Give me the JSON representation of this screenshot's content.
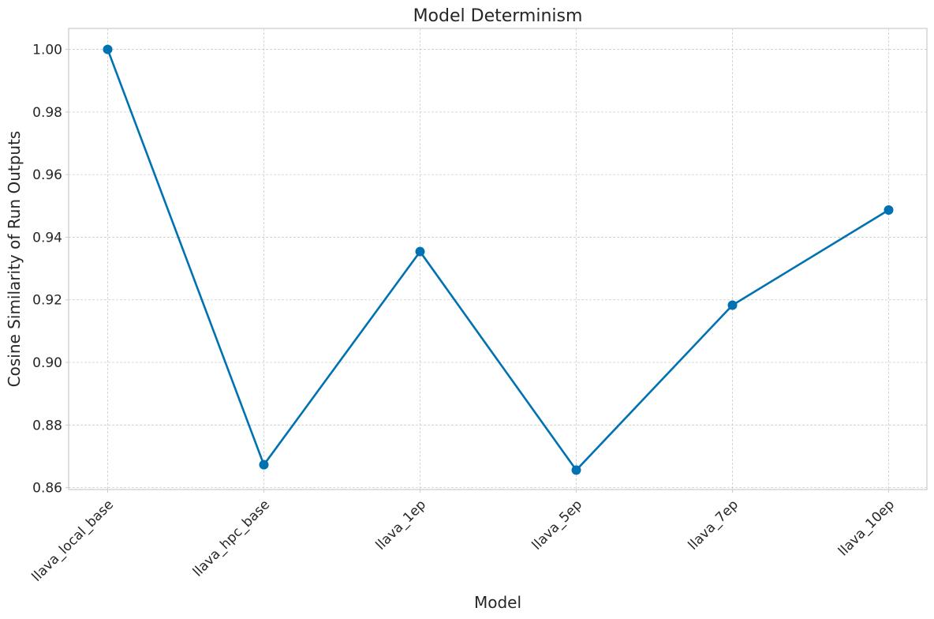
{
  "chart_data": {
    "type": "line",
    "title": "Model Determinism",
    "xlabel": "Model",
    "ylabel": "Cosine Similarity of Run Outputs",
    "categories": [
      "llava_local_base",
      "llava_hpc_base",
      "llava_1ep",
      "llava_5ep",
      "llava_7ep",
      "llava_10ep"
    ],
    "series": [
      {
        "values": [
          1.0,
          0.8673,
          0.9354,
          0.8656,
          0.9183,
          0.9487
        ]
      }
    ],
    "ylim": [
      0.8594,
      1.0067
    ],
    "yticks": [
      0.86,
      0.88,
      0.9,
      0.92,
      0.94,
      0.96,
      0.98,
      1.0
    ],
    "ytick_labels": [
      "0.86",
      "0.88",
      "0.90",
      "0.92",
      "0.94",
      "0.96",
      "0.98",
      "1.00"
    ],
    "grid": true,
    "marker": "circle",
    "color": "#0072b2"
  }
}
